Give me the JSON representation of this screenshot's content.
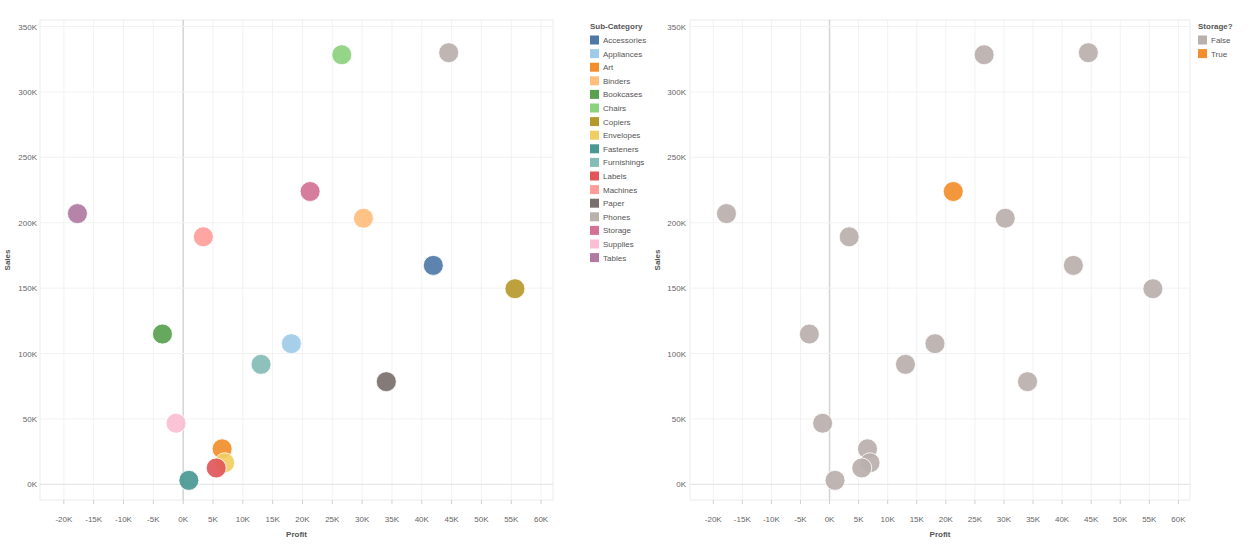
{
  "chart_data": [
    {
      "type": "scatter",
      "x_label": "Profit",
      "y_label": "Sales",
      "legend_title": "Sub-Category",
      "legend": "right",
      "grid": true,
      "xlim": [
        -24000,
        62000
      ],
      "xticks": [
        {
          "value": -20000,
          "label": "-20K"
        },
        {
          "value": -15000,
          "label": "-15K"
        },
        {
          "value": -10000,
          "label": "-10K"
        },
        {
          "value": -5000,
          "label": "-5K"
        },
        {
          "value": 0,
          "label": "0K"
        },
        {
          "value": 5000,
          "label": "5K"
        },
        {
          "value": 10000,
          "label": "10K"
        },
        {
          "value": 15000,
          "label": "15K"
        },
        {
          "value": 20000,
          "label": "20K"
        },
        {
          "value": 25000,
          "label": "25K"
        },
        {
          "value": 30000,
          "label": "30K"
        },
        {
          "value": 35000,
          "label": "35K"
        },
        {
          "value": 40000,
          "label": "40K"
        },
        {
          "value": 45000,
          "label": "45K"
        },
        {
          "value": 50000,
          "label": "50K"
        },
        {
          "value": 55000,
          "label": "55K"
        },
        {
          "value": 60000,
          "label": "60K"
        }
      ],
      "ylim": [
        -12000,
        355000
      ],
      "yticks": [
        {
          "value": 0,
          "label": "0K"
        },
        {
          "value": 50000,
          "label": "50K"
        },
        {
          "value": 100000,
          "label": "100K"
        },
        {
          "value": 150000,
          "label": "150K"
        },
        {
          "value": 200000,
          "label": "200K"
        },
        {
          "value": 250000,
          "label": "250K"
        },
        {
          "value": 300000,
          "label": "300K"
        },
        {
          "value": 350000,
          "label": "350K"
        }
      ],
      "series": [
        {
          "name": "Accessories",
          "color": "#4e79a7",
          "x": [
            41937
          ],
          "values": [
            167380
          ]
        },
        {
          "name": "Appliances",
          "color": "#a0cbe8",
          "x": [
            18138
          ],
          "values": [
            107532
          ]
        },
        {
          "name": "Art",
          "color": "#f28e2b",
          "x": [
            6528
          ],
          "values": [
            27119
          ]
        },
        {
          "name": "Binders",
          "color": "#ffbe7d",
          "x": [
            30222
          ],
          "values": [
            203413
          ]
        },
        {
          "name": "Bookcases",
          "color": "#59a14f",
          "x": [
            -3473
          ],
          "values": [
            114880
          ]
        },
        {
          "name": "Chairs",
          "color": "#8cd17d",
          "x": [
            26590
          ],
          "values": [
            328449
          ]
        },
        {
          "name": "Copiers",
          "color": "#b6992d",
          "x": [
            55618
          ],
          "values": [
            149528
          ]
        },
        {
          "name": "Envelopes",
          "color": "#f1ce63",
          "x": [
            6964
          ],
          "values": [
            16476
          ]
        },
        {
          "name": "Fasteners",
          "color": "#499894",
          "x": [
            950
          ],
          "values": [
            3024
          ]
        },
        {
          "name": "Furnishings",
          "color": "#86bcb6",
          "x": [
            13059
          ],
          "values": [
            91705
          ]
        },
        {
          "name": "Labels",
          "color": "#e15759",
          "x": [
            5546
          ],
          "values": [
            12486
          ]
        },
        {
          "name": "Machines",
          "color": "#ff9d9a",
          "x": [
            3385
          ],
          "values": [
            189239
          ]
        },
        {
          "name": "Paper",
          "color": "#79706e",
          "x": [
            34054
          ],
          "values": [
            78479
          ]
        },
        {
          "name": "Phones",
          "color": "#bab0ac",
          "x": [
            44516
          ],
          "values": [
            330007
          ]
        },
        {
          "name": "Storage",
          "color": "#d37295",
          "x": [
            21279
          ],
          "values": [
            223844
          ]
        },
        {
          "name": "Supplies",
          "color": "#fabfd2",
          "x": [
            -1189
          ],
          "values": [
            46674
          ]
        },
        {
          "name": "Tables",
          "color": "#b07aa1",
          "x": [
            -17725
          ],
          "values": [
            206966
          ]
        }
      ]
    },
    {
      "type": "scatter",
      "x_label": "Profit",
      "y_label": "Sales",
      "legend_title": "Storage?",
      "legend": "right",
      "grid": true,
      "xlim": [
        -24000,
        62000
      ],
      "xticks": [
        {
          "value": -20000,
          "label": "-20K"
        },
        {
          "value": -15000,
          "label": "-15K"
        },
        {
          "value": -10000,
          "label": "-10K"
        },
        {
          "value": -5000,
          "label": "-5K"
        },
        {
          "value": 0,
          "label": "0K"
        },
        {
          "value": 5000,
          "label": "5K"
        },
        {
          "value": 10000,
          "label": "10K"
        },
        {
          "value": 15000,
          "label": "15K"
        },
        {
          "value": 20000,
          "label": "20K"
        },
        {
          "value": 25000,
          "label": "25K"
        },
        {
          "value": 30000,
          "label": "30K"
        },
        {
          "value": 35000,
          "label": "35K"
        },
        {
          "value": 40000,
          "label": "40K"
        },
        {
          "value": 45000,
          "label": "45K"
        },
        {
          "value": 50000,
          "label": "50K"
        },
        {
          "value": 55000,
          "label": "55K"
        },
        {
          "value": 60000,
          "label": "60K"
        }
      ],
      "ylim": [
        -12000,
        355000
      ],
      "yticks": [
        {
          "value": 0,
          "label": "0K"
        },
        {
          "value": 50000,
          "label": "50K"
        },
        {
          "value": 100000,
          "label": "100K"
        },
        {
          "value": 150000,
          "label": "150K"
        },
        {
          "value": 200000,
          "label": "200K"
        },
        {
          "value": 250000,
          "label": "250K"
        },
        {
          "value": 300000,
          "label": "300K"
        },
        {
          "value": 350000,
          "label": "350K"
        }
      ],
      "series": [
        {
          "name": "False",
          "color": "#bab0ac",
          "x": [
            41937,
            18138,
            6528,
            30222,
            -3473,
            26590,
            55618,
            6964,
            950,
            13059,
            5546,
            3385,
            34054,
            44516,
            -1189,
            -17725
          ],
          "values": [
            167380,
            107532,
            27119,
            203413,
            114880,
            328449,
            149528,
            16476,
            3024,
            91705,
            12486,
            189239,
            78479,
            330007,
            46674,
            206966
          ]
        },
        {
          "name": "True",
          "color": "#f28e2b",
          "x": [
            21279
          ],
          "values": [
            223844
          ]
        }
      ]
    }
  ]
}
